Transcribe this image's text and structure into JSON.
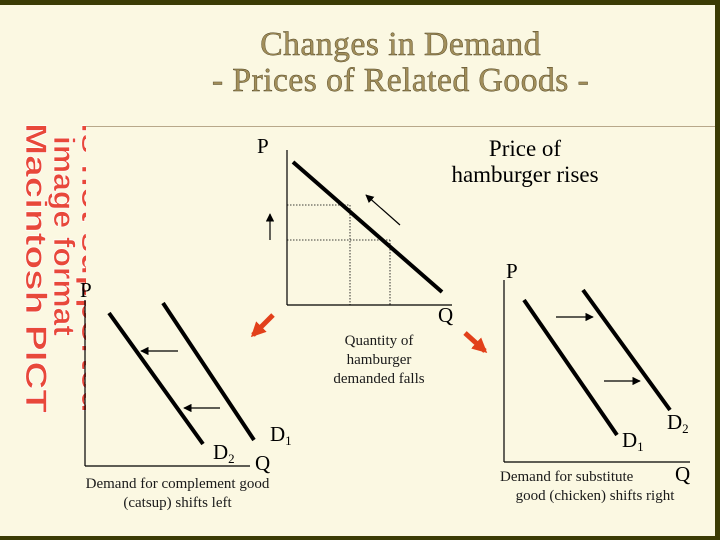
{
  "title": {
    "line1": "Changes in Demand",
    "line2": "- Prices of Related Goods -"
  },
  "placeholder": {
    "lines": [
      "Macintosh PICT",
      "image format",
      "is not supported"
    ]
  },
  "center_graph": {
    "y_axis": "P",
    "x_axis": "Q",
    "caption": [
      "Price of",
      "hamburger rises"
    ],
    "quantity_note": [
      "Quantity of",
      "hamburger",
      "demanded falls"
    ]
  },
  "left_graph": {
    "y_axis": "P",
    "x_axis": "Q",
    "d2_label": "D",
    "d2_sub": "2",
    "d1_label": "D",
    "d1_sub": "1",
    "caption": [
      "Demand for complement good",
      "(catsup) shifts left"
    ]
  },
  "right_graph": {
    "y_axis": "P",
    "x_axis": "Q",
    "d1_label": "D",
    "d1_sub": "1",
    "d2_label": "D",
    "d2_sub": "2",
    "caption": [
      "Demand for substitute",
      "good (chicken) shifts right"
    ]
  },
  "colors": {
    "background": "#fbf8e2",
    "frame": "#3b3b04",
    "title": "#a18e5a",
    "arrow_red": "#e2401a",
    "placeholder_red": "#e8483a"
  }
}
